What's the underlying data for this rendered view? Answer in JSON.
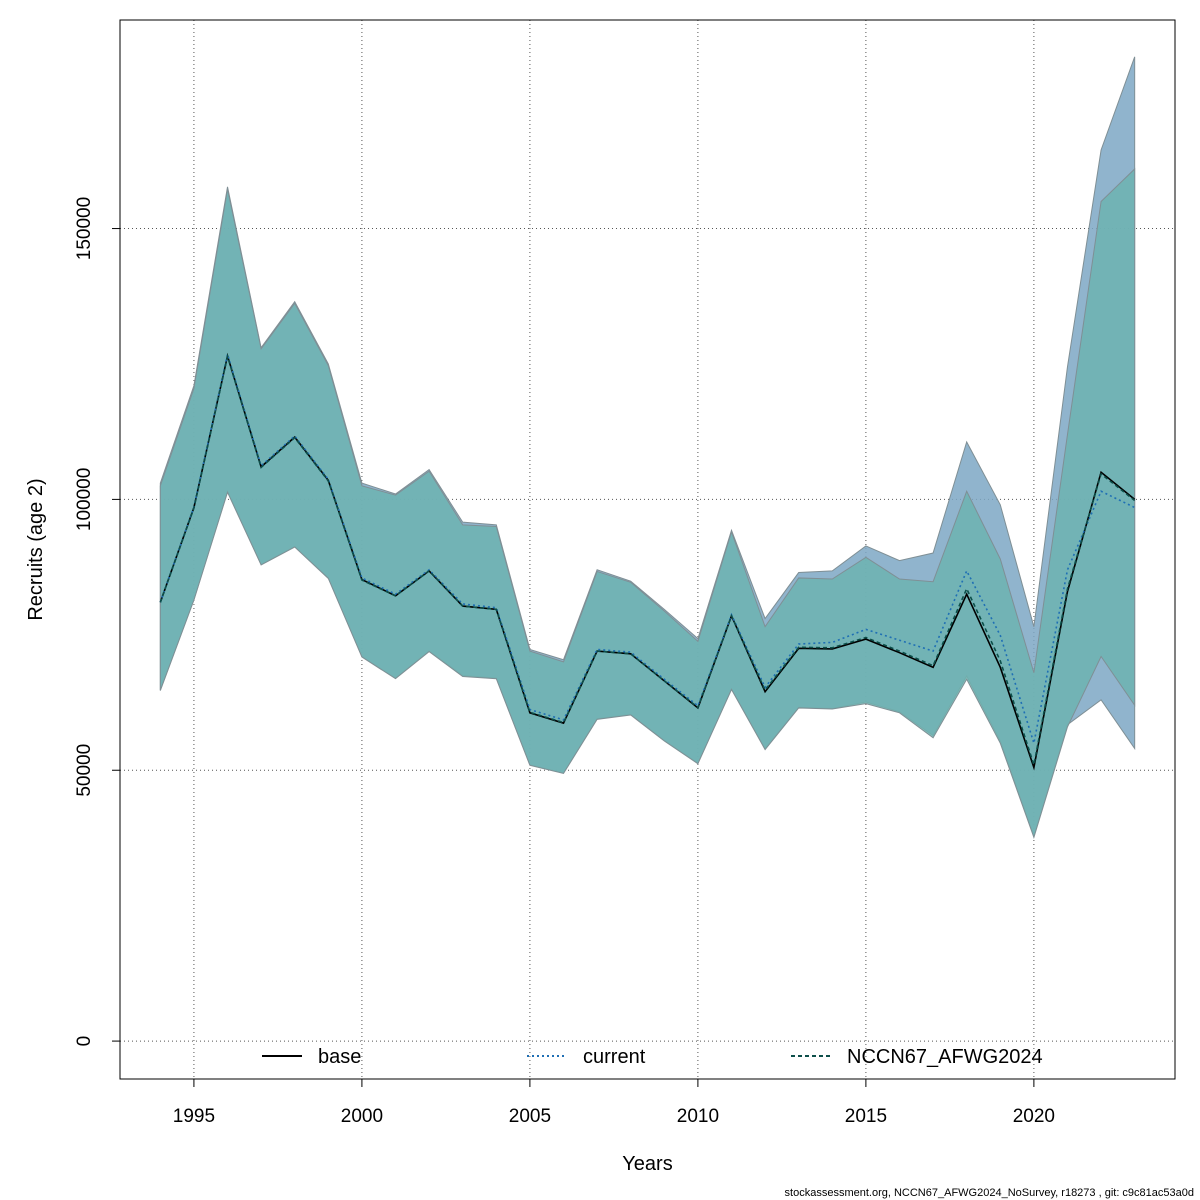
{
  "chart_data": {
    "type": "line",
    "title": "",
    "xlabel": "Years",
    "ylabel": "Recruits (age 2)",
    "xlim": [
      1992.8,
      2024.2
    ],
    "ylim": [
      -7000,
      188500
    ],
    "x_ticks": [
      1995,
      2000,
      2005,
      2010,
      2015,
      2020
    ],
    "y_ticks": [
      0,
      50000,
      100000,
      150000
    ],
    "grid": true,
    "legend_position": "bottom",
    "x": [
      1994,
      1995,
      1996,
      1997,
      1998,
      1999,
      2000,
      2001,
      2002,
      2003,
      2004,
      2005,
      2006,
      2007,
      2008,
      2009,
      2010,
      2011,
      2012,
      2013,
      2014,
      2015,
      2016,
      2017,
      2018,
      2019,
      2020,
      2021,
      2022,
      2023
    ],
    "bands": [
      {
        "ref": "current",
        "color": "#7ca7c4",
        "lower": [
          64800,
          81500,
          101500,
          88000,
          91300,
          85500,
          71000,
          67000,
          72000,
          67500,
          67000,
          51000,
          49500,
          59500,
          60300,
          55500,
          51300,
          65000,
          54000,
          61600,
          61400,
          62600,
          60800,
          56400,
          67400,
          55400,
          37800,
          58400,
          63000,
          54000
        ],
        "upper": [
          103000,
          121000,
          157700,
          128000,
          136500,
          125000,
          103000,
          101000,
          105500,
          95800,
          95300,
          72300,
          70400,
          87000,
          84900,
          79700,
          74300,
          94300,
          78000,
          86500,
          86800,
          91400,
          88700,
          90100,
          110600,
          99000,
          76500,
          124500,
          164500,
          181700
        ]
      },
      {
        "ref": "NCCN67_AFWG2024",
        "color": "#6db3b0",
        "lower": [
          64700,
          81400,
          101300,
          87900,
          91200,
          85400,
          70900,
          66900,
          71900,
          67300,
          66900,
          50900,
          49400,
          59400,
          60200,
          55400,
          51200,
          64900,
          53800,
          61500,
          61300,
          62300,
          60600,
          56000,
          66800,
          55000,
          37600,
          58000,
          71000,
          62000
        ],
        "upper": [
          102500,
          120500,
          157300,
          127800,
          136200,
          124700,
          102500,
          100800,
          105200,
          95300,
          95000,
          72000,
          70000,
          86700,
          84700,
          79400,
          73800,
          94000,
          76500,
          85500,
          85300,
          89300,
          85300,
          84800,
          101500,
          89000,
          68000,
          112000,
          155000,
          161000
        ]
      }
    ],
    "series": [
      {
        "name": "base",
        "color": "#000000",
        "dash": "solid",
        "values": [
          81000,
          98500,
          126500,
          106000,
          111500,
          103500,
          85200,
          82200,
          86800,
          80300,
          79700,
          60600,
          58700,
          72000,
          71500,
          66500,
          61500,
          78500,
          64500,
          72500,
          72400,
          74200,
          71700,
          69000,
          82500,
          69000,
          50500,
          83000,
          105000,
          100000
        ]
      },
      {
        "name": "current",
        "color": "#1f6fb4",
        "dash": "dotted",
        "values": [
          81000,
          98600,
          126800,
          106200,
          111700,
          103700,
          85500,
          82500,
          87000,
          80700,
          80000,
          61200,
          59300,
          72300,
          71800,
          66800,
          61900,
          78700,
          65300,
          73300,
          73600,
          76000,
          74000,
          72000,
          86800,
          74900,
          55000,
          87000,
          101500,
          98500
        ]
      },
      {
        "name": "NCCN67_AFWG2024",
        "color": "#0d4f4a",
        "dash": "dashed",
        "values": [
          81000,
          98400,
          126400,
          105900,
          111400,
          103400,
          85100,
          82200,
          86800,
          80300,
          79700,
          60700,
          58800,
          72000,
          71500,
          66500,
          61600,
          78500,
          64800,
          72700,
          72600,
          74500,
          72000,
          69300,
          83500,
          70200,
          51000,
          83500,
          104700,
          99800
        ]
      }
    ]
  },
  "footer": {
    "note": "stockassessment.org, NCCN67_AFWG2024_NoSurvey, r18273 , git: c9c81ac53a0d"
  }
}
